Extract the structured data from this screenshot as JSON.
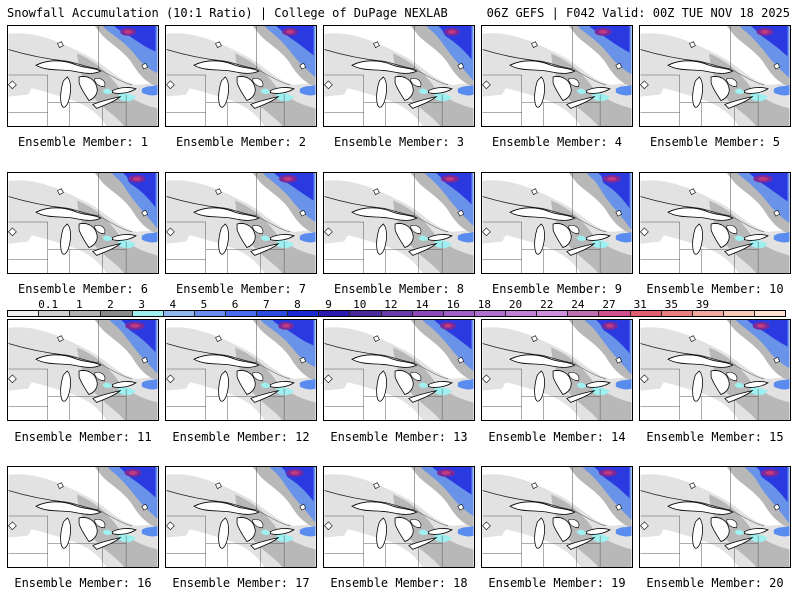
{
  "header": {
    "title": "Snowfall Accumulation (10:1 Ratio) | College of DuPage NEXLAB",
    "run_info": "06Z GEFS | F042 Valid: 00Z TUE NOV 18 2025"
  },
  "panels": [
    {
      "label": "Ensemble Member: 1"
    },
    {
      "label": "Ensemble Member: 2"
    },
    {
      "label": "Ensemble Member: 3"
    },
    {
      "label": "Ensemble Member: 4"
    },
    {
      "label": "Ensemble Member: 5"
    },
    {
      "label": "Ensemble Member: 6"
    },
    {
      "label": "Ensemble Member: 7"
    },
    {
      "label": "Ensemble Member: 8"
    },
    {
      "label": "Ensemble Member: 9"
    },
    {
      "label": "Ensemble Member: 10"
    },
    {
      "label": "Ensemble Member: 11"
    },
    {
      "label": "Ensemble Member: 12"
    },
    {
      "label": "Ensemble Member: 13"
    },
    {
      "label": "Ensemble Member: 14"
    },
    {
      "label": "Ensemble Member: 15"
    },
    {
      "label": "Ensemble Member: 16"
    },
    {
      "label": "Ensemble Member: 17"
    },
    {
      "label": "Ensemble Member: 18"
    },
    {
      "label": "Ensemble Member: 19"
    },
    {
      "label": "Ensemble Member: 20"
    }
  ],
  "colorbar": {
    "labels": [
      "0.1",
      "1",
      "2",
      "3",
      "4",
      "5",
      "6",
      "7",
      "8",
      "9",
      "10",
      "12",
      "14",
      "16",
      "18",
      "20",
      "22",
      "24",
      "27",
      "31",
      "35",
      "39"
    ],
    "colors": [
      "#f0f0f0",
      "#d0d0d0",
      "#b0b0b0",
      "#8a8a8a",
      "#9ff0f0",
      "#8fb8f0",
      "#6a8ff0",
      "#4a6af0",
      "#2a4ae0",
      "#1a2ad0",
      "#2a1ab0",
      "#4a2a9a",
      "#6a3aaa",
      "#8a4aba",
      "#a060c8",
      "#b070d0",
      "#c080d8",
      "#d090e0",
      "#c070b0",
      "#d05090",
      "#e06070",
      "#e88080",
      "#f0a8a0",
      "#f8c8b8",
      "#ffe0d0"
    ]
  },
  "colors": {
    "land": "#ffffff",
    "light_snow": "#e2e2e2",
    "moderate_snow": "#b8b8b8",
    "heavy_gray": "#8f8f8f",
    "cyan": "#9ff0f0",
    "blue": "#5a8cf0",
    "dark_blue": "#2a3ae0",
    "purple": "#7a2a9a",
    "magenta": "#c03a80",
    "outline": "#000000"
  }
}
